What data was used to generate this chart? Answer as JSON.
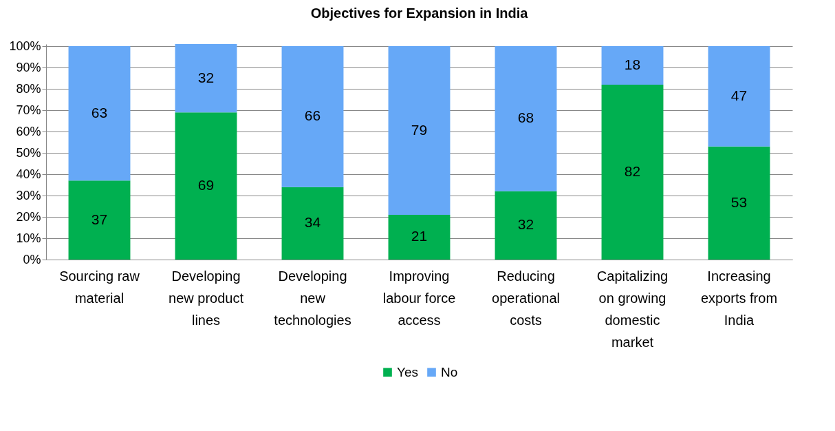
{
  "chart_data": {
    "type": "bar",
    "title": "Objectives for Expansion in India",
    "categories": [
      "Sourcing raw material",
      "Developing new product lines",
      "Developing new technologies",
      "Improving labour force access",
      "Reducing operational costs",
      "Capitalizing on growing domestic market",
      "Increasing exports from India"
    ],
    "series": [
      {
        "name": "Yes",
        "color": "#00b050",
        "values": [
          37,
          69,
          34,
          21,
          32,
          82,
          53
        ]
      },
      {
        "name": "No",
        "color": "#66a8f7",
        "values": [
          63,
          32,
          66,
          79,
          68,
          18,
          47
        ]
      }
    ],
    "stacked": true,
    "data_labels": true,
    "grid": "y",
    "legend": "bottom",
    "ylim": [
      0,
      101
    ],
    "yticks": [
      {
        "value": 0,
        "label": "0%"
      },
      {
        "value": 10,
        "label": "10%"
      },
      {
        "value": 20,
        "label": "20%"
      },
      {
        "value": 30,
        "label": "30%"
      },
      {
        "value": 40,
        "label": "40%"
      },
      {
        "value": 50,
        "label": "50%"
      },
      {
        "value": 60,
        "label": "60%"
      },
      {
        "value": 70,
        "label": "70%"
      },
      {
        "value": 80,
        "label": "80%"
      },
      {
        "value": 90,
        "label": "90%"
      },
      {
        "value": 100,
        "label": "100%"
      }
    ]
  }
}
